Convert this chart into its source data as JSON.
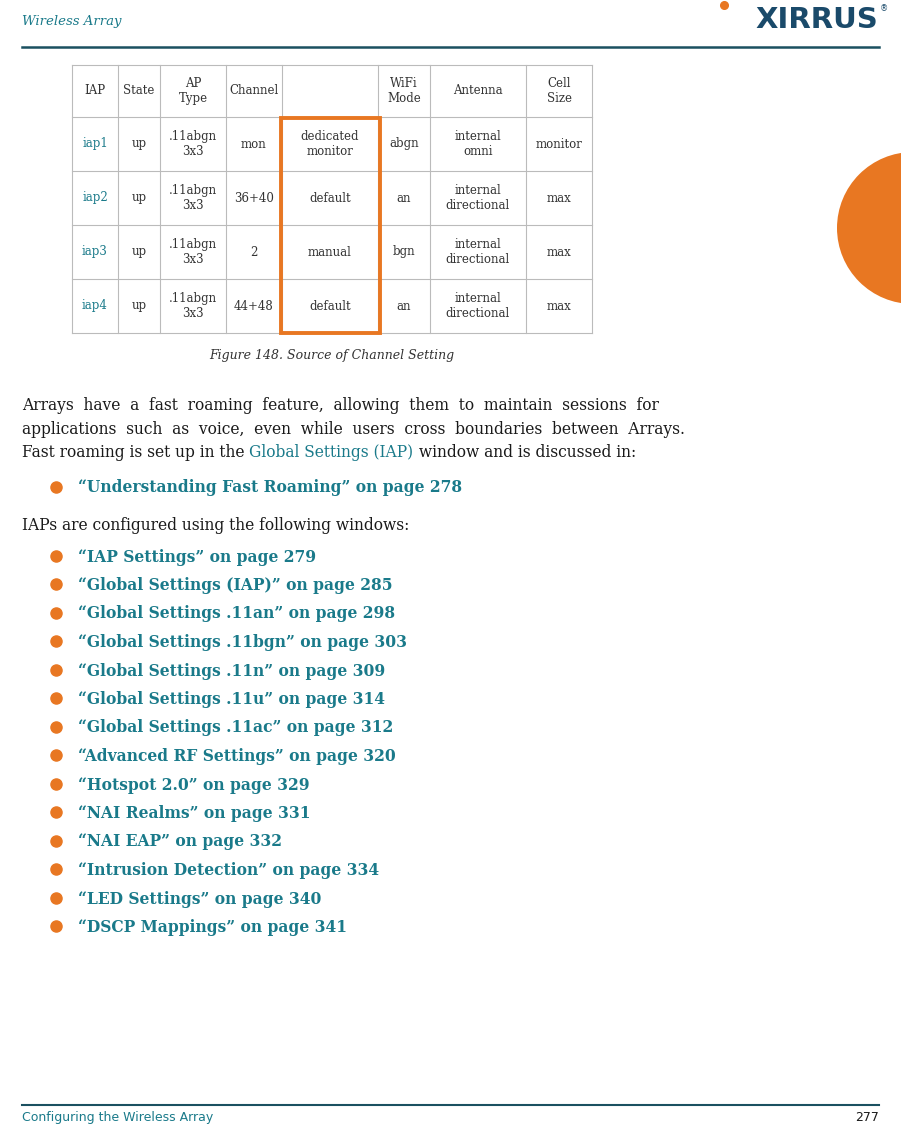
{
  "header_text": "Wireless Array",
  "teal_color": "#1a7a8a",
  "dark_teal": "#1a5060",
  "header_teal": "#1d6e7e",
  "orange_color": "#e87722",
  "black_color": "#1a1a1a",
  "gray_text": "#444444",
  "footer_text": "Configuring the Wireless Array",
  "footer_page": "277",
  "figure_caption": "Figure 148. Source of Channel Setting",
  "table_headers": [
    "IAP",
    "State",
    "AP\nType",
    "Channel",
    "",
    "WiFi\nMode",
    "Antenna",
    "Cell\nSize"
  ],
  "table_rows": [
    [
      "iap1",
      "up",
      ".11abgn\n3x3",
      "mon",
      "dedicated\nmonitor",
      "abgn",
      "internal\nomni",
      "monitor"
    ],
    [
      "iap2",
      "up",
      ".11abgn\n3x3",
      "36+40",
      "default",
      "an",
      "internal\ndirectional",
      "max"
    ],
    [
      "iap3",
      "up",
      ".11abgn\n3x3",
      "2",
      "manual",
      "bgn",
      "internal\ndirectional",
      "max"
    ],
    [
      "iap4",
      "up",
      ".11abgn\n3x3",
      "44+48",
      "default",
      "an",
      "internal\ndirectional",
      "max"
    ]
  ],
  "para_line1": "Arrays  have  a  fast  roaming  feature,  allowing  them  to  maintain  sessions  for",
  "para_line2": "applications  such  as  voice,  even  while  users  cross  boundaries  between  Arrays.",
  "para_line3_pre": "Fast roaming is set up in the ",
  "para_line3_link": "Global Settings (IAP)",
  "para_line3_post": " window and is discussed in:",
  "bullet1": [
    "“Understanding Fast Roaming” on page 278"
  ],
  "intro2": "IAPs are configured using the following windows:",
  "bullet2": [
    "“IAP Settings” on page 279",
    "“Global Settings (IAP)” on page 285",
    "“Global Settings .11an” on page 298",
    "“Global Settings .11bgn” on page 303",
    "“Global Settings .11n” on page 309",
    "“Global Settings .11u” on page 314",
    "“Global Settings .11ac” on page 312",
    "“Advanced RF Settings” on page 320",
    "“Hotspot 2.0” on page 329",
    "“NAI Realms” on page 331",
    "“NAI EAP” on page 332",
    "“Intrusion Detection” on page 334",
    "“LED Settings” on page 340",
    "“DSCP Mappings” on page 341"
  ]
}
